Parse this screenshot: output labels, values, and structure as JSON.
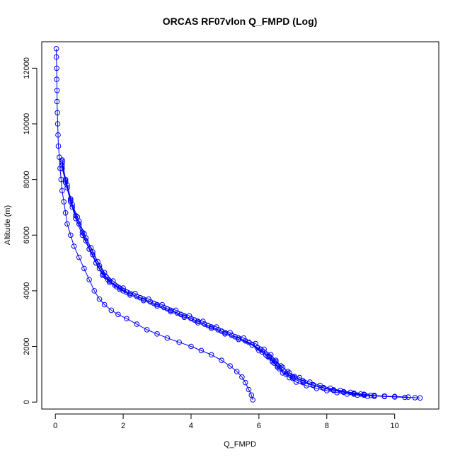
{
  "chart_data": {
    "type": "scatter",
    "title": "ORCAS RF07vlon Q_FMPD (Log)",
    "xlabel": "Q_FMPD",
    "ylabel": "Altitude (m)",
    "xlim": [
      -0.4,
      11.3
    ],
    "ylim": [
      -250,
      12950
    ],
    "x_ticks": [
      0,
      2,
      4,
      6,
      8,
      10
    ],
    "y_ticks": [
      0,
      2000,
      4000,
      6000,
      8000,
      10000,
      12000
    ],
    "x_tick_labels": [
      "0",
      "2",
      "4",
      "6",
      "8",
      "10"
    ],
    "y_tick_labels": [
      "0",
      "2000",
      "4000",
      "6000",
      "8000",
      "10000",
      "12000"
    ],
    "grid": false,
    "series_color": "#0000ff",
    "series": [
      {
        "x": [
          0.03,
          0.03,
          0.04,
          0.04,
          0.05,
          0.05,
          0.06,
          0.07,
          0.08,
          0.09,
          0.12,
          0.14,
          0.17,
          0.2,
          0.25,
          0.3,
          0.35,
          0.45,
          0.55,
          0.7,
          0.85,
          1.0,
          1.15,
          1.3,
          1.45,
          1.65,
          1.85,
          2.1,
          2.4,
          2.7,
          3.0,
          3.3,
          3.65,
          4.0,
          4.3,
          4.6,
          4.9,
          5.15,
          5.35,
          5.5,
          5.6,
          5.7,
          5.78,
          5.82
        ],
        "y": [
          12700,
          12400,
          12000,
          11600,
          11200,
          10800,
          10400,
          10000,
          9600,
          9200,
          8800,
          8400,
          8000,
          7600,
          7200,
          6800,
          6400,
          6000,
          5600,
          5200,
          4800,
          4400,
          4000,
          3700,
          3500,
          3300,
          3150,
          3000,
          2800,
          2600,
          2450,
          2300,
          2150,
          2000,
          1850,
          1700,
          1500,
          1300,
          1100,
          900,
          700,
          450,
          250,
          80
        ]
      },
      {
        "x": [
          0.2,
          0.3,
          0.45,
          0.6,
          0.8,
          1.0,
          1.2,
          1.4,
          1.6,
          1.9,
          2.2,
          2.6,
          3.0,
          3.4,
          3.8,
          4.2,
          4.6,
          5.0,
          5.4,
          5.8,
          6.1,
          6.3,
          6.45,
          6.6,
          6.8,
          7.0,
          7.3,
          7.6,
          7.9,
          8.2,
          8.5,
          8.8,
          9.1,
          9.4,
          9.7,
          10.0,
          10.3,
          10.6,
          10.75
        ],
        "y": [
          8700,
          8000,
          7300,
          6700,
          6100,
          5500,
          5000,
          4600,
          4350,
          4100,
          3900,
          3700,
          3500,
          3300,
          3100,
          2900,
          2700,
          2500,
          2300,
          2050,
          1800,
          1600,
          1400,
          1200,
          1000,
          850,
          700,
          600,
          500,
          420,
          360,
          300,
          260,
          220,
          200,
          185,
          170,
          160,
          150
        ]
      },
      {
        "x": [
          0.2,
          0.35,
          0.5,
          0.7,
          0.9,
          1.1,
          1.3,
          1.5,
          1.75,
          2.0,
          2.4,
          2.8,
          3.2,
          3.6,
          4.0,
          4.4,
          4.8,
          5.2,
          5.6,
          5.95,
          6.2,
          6.4,
          6.55,
          6.75,
          7.0,
          7.3,
          7.6,
          7.9,
          8.2,
          8.5,
          8.8,
          9.1,
          9.4,
          9.7,
          10.0,
          10.4
        ],
        "y": [
          8500,
          7800,
          7100,
          6500,
          5900,
          5400,
          4900,
          4500,
          4200,
          4000,
          3800,
          3600,
          3400,
          3200,
          3000,
          2800,
          2600,
          2400,
          2200,
          1950,
          1700,
          1500,
          1300,
          1100,
          900,
          750,
          620,
          520,
          440,
          370,
          320,
          280,
          240,
          215,
          200,
          180
        ]
      },
      {
        "x": [
          0.2,
          0.3,
          0.45,
          0.6,
          0.8,
          1.0,
          1.2,
          1.4,
          1.6,
          1.9,
          2.2,
          2.6,
          3.0,
          3.4,
          3.8,
          4.2,
          4.6,
          5.0,
          5.4,
          5.8,
          6.0,
          6.25,
          6.4,
          6.55,
          6.7,
          6.9,
          7.1,
          7.4,
          7.7,
          8.0,
          8.3,
          8.6,
          8.9,
          9.2
        ],
        "y": [
          8600,
          7900,
          7200,
          6600,
          6000,
          5500,
          5000,
          4550,
          4300,
          4050,
          3850,
          3650,
          3450,
          3250,
          3050,
          2850,
          2650,
          2450,
          2250,
          2050,
          1850,
          1650,
          1450,
          1250,
          1050,
          880,
          720,
          590,
          490,
          410,
          340,
          290,
          250,
          210
        ]
      },
      {
        "x": [
          0.2,
          0.35,
          0.5,
          0.7,
          0.9,
          1.1,
          1.3,
          1.55,
          1.8,
          2.1,
          2.5,
          2.9,
          3.3,
          3.7,
          4.1,
          4.5,
          4.9,
          5.3,
          5.7,
          6.05,
          6.3,
          6.5,
          6.7,
          6.9,
          7.2,
          7.5,
          7.8,
          8.1,
          8.4,
          8.7,
          9.0,
          9.3
        ],
        "y": [
          8400,
          7700,
          7000,
          6400,
          5800,
          5300,
          4800,
          4400,
          4150,
          3950,
          3750,
          3550,
          3350,
          3150,
          2950,
          2750,
          2550,
          2350,
          2150,
          1900,
          1650,
          1450,
          1250,
          1050,
          880,
          720,
          600,
          500,
          420,
          350,
          290,
          240
        ]
      },
      {
        "x": [
          0.2,
          0.3,
          0.45,
          0.65,
          0.85,
          1.05,
          1.25,
          1.45,
          1.7,
          2.0,
          2.35,
          2.75,
          3.15,
          3.55,
          3.95,
          4.35,
          4.75,
          5.15,
          5.55,
          5.9,
          6.15,
          6.35,
          6.5,
          6.65,
          6.85,
          7.05,
          7.3,
          7.6,
          7.9,
          8.2,
          8.5,
          8.8,
          9.1,
          9.4
        ],
        "y": [
          8650,
          7950,
          7250,
          6650,
          6050,
          5550,
          5050,
          4650,
          4350,
          4100,
          3900,
          3700,
          3500,
          3300,
          3100,
          2900,
          2700,
          2500,
          2300,
          2100,
          1900,
          1700,
          1500,
          1300,
          1100,
          920,
          760,
          620,
          510,
          420,
          350,
          290,
          250,
          210
        ]
      }
    ]
  }
}
